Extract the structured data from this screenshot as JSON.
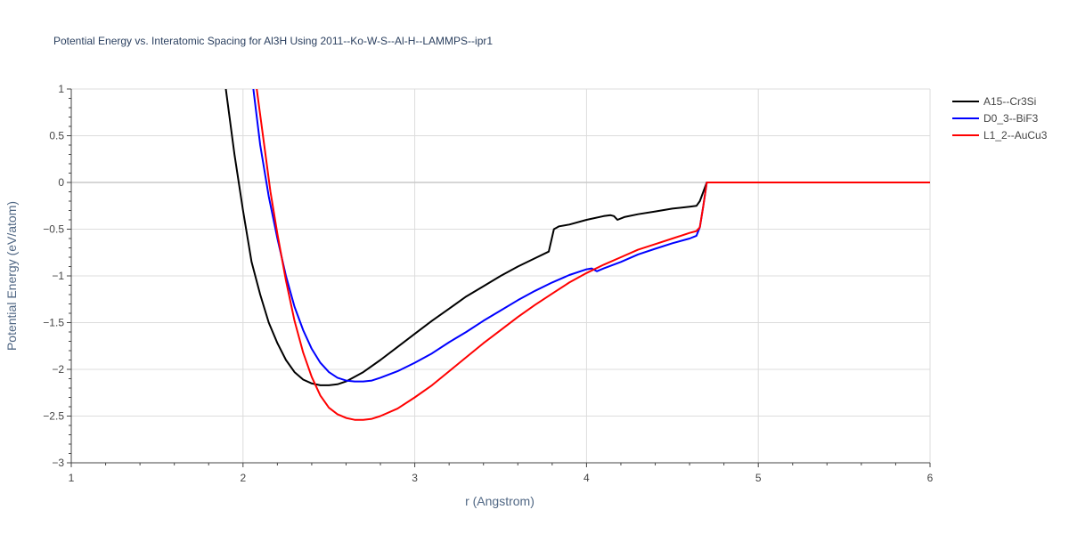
{
  "chart_data": {
    "type": "line",
    "title": "Potential Energy vs. Interatomic Spacing for Al3H Using 2011--Ko-W-S--Al-H--LAMMPS--ipr1",
    "xlabel": "r (Angstrom)",
    "ylabel": "Potential Energy (eV/atom)",
    "xlim": [
      1,
      6
    ],
    "ylim": [
      -3,
      1
    ],
    "xticks": [
      1,
      2,
      3,
      4,
      5,
      6
    ],
    "xtick_labels": [
      "1",
      "2",
      "3",
      "4",
      "5",
      "6"
    ],
    "yticks": [
      -3,
      -2.5,
      -2,
      -1.5,
      -1,
      -0.5,
      0,
      0.5,
      1
    ],
    "ytick_labels": [
      "−3",
      "−2.5",
      "−2",
      "−1.5",
      "−1",
      "−0.5",
      "0",
      "0.5",
      "1"
    ],
    "grid": true,
    "legend_position": "top-right",
    "series": [
      {
        "name": "A15--Cr3Si",
        "color": "#000000",
        "x": [
          1.9,
          1.95,
          2.0,
          2.05,
          2.1,
          2.15,
          2.2,
          2.25,
          2.3,
          2.35,
          2.4,
          2.45,
          2.5,
          2.55,
          2.6,
          2.7,
          2.8,
          2.9,
          3.0,
          3.1,
          3.2,
          3.3,
          3.4,
          3.5,
          3.6,
          3.7,
          3.78,
          3.81,
          3.84,
          3.9,
          4.0,
          4.1,
          4.14,
          4.16,
          4.18,
          4.22,
          4.3,
          4.4,
          4.5,
          4.6,
          4.64,
          4.66,
          4.68,
          4.7,
          4.8,
          5.0,
          5.5,
          6.0
        ],
        "y": [
          1.0,
          0.3,
          -0.3,
          -0.85,
          -1.2,
          -1.5,
          -1.72,
          -1.9,
          -2.03,
          -2.11,
          -2.15,
          -2.17,
          -2.17,
          -2.16,
          -2.13,
          -2.03,
          -1.9,
          -1.76,
          -1.62,
          -1.48,
          -1.35,
          -1.22,
          -1.11,
          -1.0,
          -0.9,
          -0.81,
          -0.74,
          -0.5,
          -0.47,
          -0.45,
          -0.4,
          -0.36,
          -0.35,
          -0.36,
          -0.4,
          -0.37,
          -0.34,
          -0.31,
          -0.28,
          -0.26,
          -0.25,
          -0.2,
          -0.1,
          0.0,
          0.0,
          0.0,
          0.0,
          0.0
        ]
      },
      {
        "name": "D0_3--BiF3",
        "color": "#0000ff",
        "x": [
          2.06,
          2.1,
          2.15,
          2.2,
          2.25,
          2.3,
          2.35,
          2.4,
          2.45,
          2.5,
          2.55,
          2.6,
          2.65,
          2.7,
          2.75,
          2.8,
          2.9,
          3.0,
          3.1,
          3.2,
          3.3,
          3.4,
          3.5,
          3.6,
          3.7,
          3.8,
          3.9,
          4.0,
          4.03,
          4.06,
          4.1,
          4.2,
          4.3,
          4.4,
          4.5,
          4.6,
          4.64,
          4.66,
          4.68,
          4.7,
          4.8,
          5.0,
          5.5,
          6.0
        ],
        "y": [
          1.0,
          0.4,
          -0.15,
          -0.6,
          -1.0,
          -1.33,
          -1.58,
          -1.78,
          -1.93,
          -2.03,
          -2.09,
          -2.12,
          -2.13,
          -2.13,
          -2.12,
          -2.09,
          -2.02,
          -1.93,
          -1.83,
          -1.71,
          -1.6,
          -1.48,
          -1.37,
          -1.26,
          -1.16,
          -1.07,
          -0.99,
          -0.93,
          -0.92,
          -0.95,
          -0.92,
          -0.85,
          -0.77,
          -0.71,
          -0.65,
          -0.6,
          -0.57,
          -0.48,
          -0.25,
          0.0,
          0.0,
          0.0,
          0.0,
          0.0
        ]
      },
      {
        "name": "L1_2--AuCu3",
        "color": "#ff0000",
        "x": [
          2.08,
          2.12,
          2.16,
          2.2,
          2.25,
          2.3,
          2.35,
          2.4,
          2.45,
          2.5,
          2.55,
          2.6,
          2.65,
          2.7,
          2.75,
          2.8,
          2.9,
          3.0,
          3.1,
          3.2,
          3.3,
          3.4,
          3.5,
          3.6,
          3.7,
          3.8,
          3.9,
          4.0,
          4.1,
          4.2,
          4.3,
          4.4,
          4.5,
          4.6,
          4.64,
          4.66,
          4.68,
          4.7,
          4.8,
          5.0,
          5.5,
          6.0
        ],
        "y": [
          1.0,
          0.45,
          -0.1,
          -0.55,
          -1.05,
          -1.48,
          -1.82,
          -2.08,
          -2.28,
          -2.41,
          -2.48,
          -2.52,
          -2.54,
          -2.54,
          -2.53,
          -2.5,
          -2.42,
          -2.3,
          -2.17,
          -2.02,
          -1.87,
          -1.72,
          -1.58,
          -1.44,
          -1.31,
          -1.19,
          -1.07,
          -0.97,
          -0.88,
          -0.8,
          -0.72,
          -0.66,
          -0.6,
          -0.54,
          -0.52,
          -0.48,
          -0.25,
          0.0,
          0.0,
          0.0,
          0.0,
          0.0
        ]
      }
    ]
  }
}
